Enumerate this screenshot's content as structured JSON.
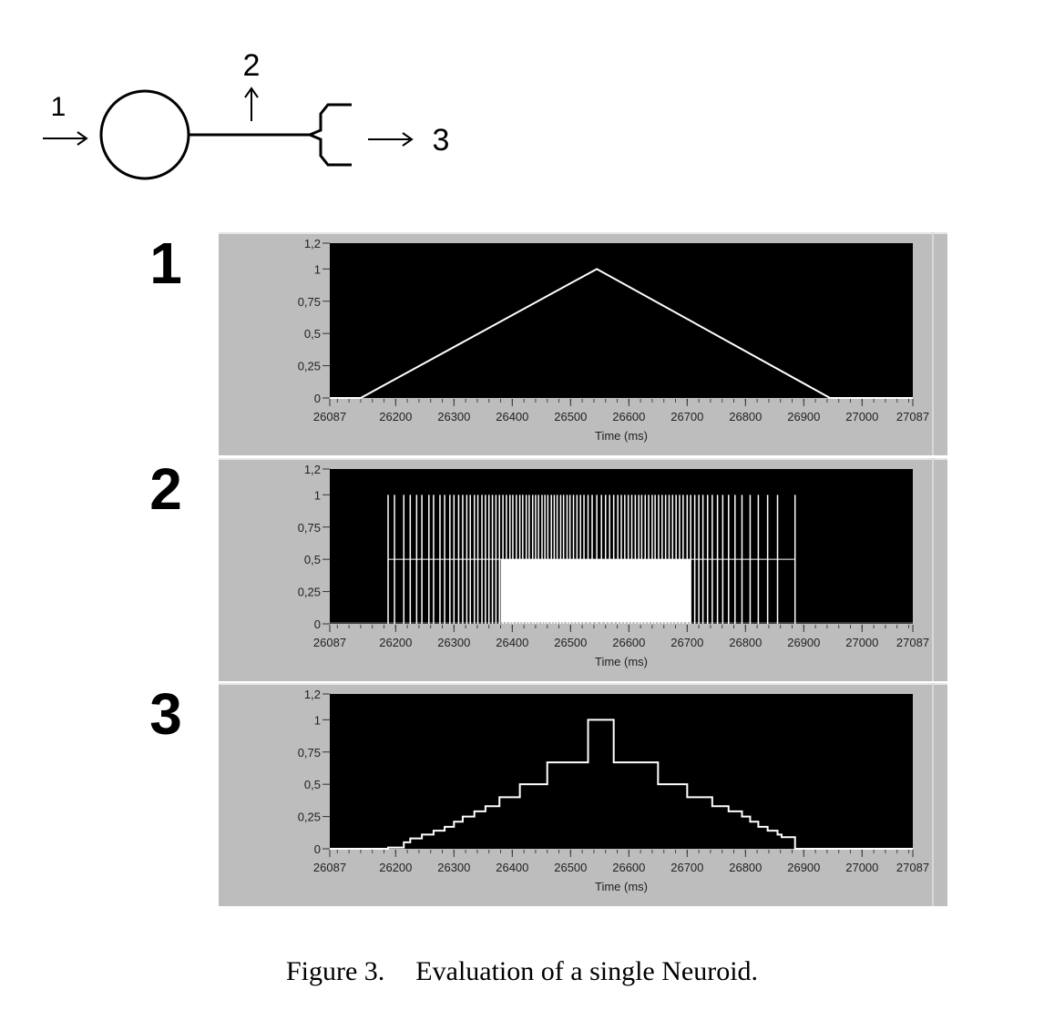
{
  "diagram": {
    "input_label": "1",
    "axon_label": "2",
    "output_label": "3"
  },
  "caption": {
    "figure_number": "Figure 3.",
    "text": "Evaluation of a single Neuroid."
  },
  "colors": {
    "plot_background": "#000000",
    "panel_background": "#bdbdbd",
    "trace": "#ffffff"
  },
  "chart_data": [
    {
      "type": "line",
      "panel_label": "1",
      "xlabel": "Time (ms)",
      "xlim": [
        26087,
        27087
      ],
      "ylim": [
        0,
        1.2
      ],
      "x_ticks": [
        26087,
        26200,
        26300,
        26400,
        26500,
        26600,
        26700,
        26800,
        26900,
        27000,
        27087
      ],
      "y_ticks": [
        0,
        0.25,
        0.5,
        0.75,
        1,
        1.2
      ],
      "y_tick_labels": [
        "0",
        "0,25",
        "0,5",
        "0,75",
        "1",
        "1,2"
      ],
      "series": [
        {
          "x": [
            26087,
            26140,
            26545,
            26945,
            27087
          ],
          "y": [
            0,
            0,
            1,
            0,
            0
          ]
        }
      ],
      "grid": false
    },
    {
      "type": "spikes",
      "panel_label": "2",
      "xlabel": "Time (ms)",
      "xlim": [
        26087,
        27087
      ],
      "ylim": [
        0,
        1.2
      ],
      "x_ticks": [
        26087,
        26200,
        26300,
        26400,
        26500,
        26600,
        26700,
        26800,
        26900,
        27000,
        27087
      ],
      "y_ticks": [
        0,
        0.25,
        0.5,
        0.75,
        1,
        1.2
      ],
      "y_tick_labels": [
        "0",
        "0,25",
        "0,5",
        "0,75",
        "1",
        "1,2"
      ],
      "spike_height": 1,
      "baseline_level": 0.5,
      "first_spike": 26187,
      "last_spike": 26885,
      "dense_interval": [
        26380,
        26705
      ],
      "spike_times": [
        26187,
        26198,
        26214,
        26225,
        26236,
        26245,
        26257,
        26265,
        26276,
        26284,
        26293,
        26300,
        26308,
        26315,
        26322,
        26328,
        26335,
        26341,
        26348,
        26354,
        26360,
        26366,
        26372,
        26378,
        26384,
        26390,
        26396,
        26401,
        26407,
        26413,
        26418,
        26424,
        26429,
        26435,
        26440,
        26445,
        26451,
        26456,
        26461,
        26467,
        26472,
        26477,
        26483,
        26488,
        26494,
        26499,
        26505,
        26511,
        26517,
        26523,
        26530,
        26537,
        26545,
        26553,
        26560,
        26567,
        26574,
        26581,
        26587,
        26593,
        26599,
        26605,
        26611,
        26617,
        26622,
        26628,
        26634,
        26640,
        26645,
        26651,
        26657,
        26663,
        26669,
        26675,
        26681,
        26687,
        26693,
        26700,
        26706,
        26713,
        26720,
        26727,
        26735,
        26743,
        26752,
        26761,
        26771,
        26782,
        26794,
        26808,
        26822,
        26838,
        26855,
        26885
      ],
      "grid": false
    },
    {
      "type": "step",
      "panel_label": "3",
      "xlabel": "Time (ms)",
      "xlim": [
        26087,
        27087
      ],
      "ylim": [
        0,
        1.2
      ],
      "x_ticks": [
        26087,
        26200,
        26300,
        26400,
        26500,
        26600,
        26700,
        26800,
        26900,
        27000,
        27087
      ],
      "y_ticks": [
        0,
        0.25,
        0.5,
        0.75,
        1,
        1.2
      ],
      "y_tick_labels": [
        "0",
        "0,25",
        "0,5",
        "0,75",
        "1",
        "1,2"
      ],
      "series": [
        {
          "x": [
            26087,
            26187,
            26214,
            26225,
            26245,
            26265,
            26284,
            26300,
            26315,
            26335,
            26354,
            26378,
            26413,
            26460,
            26530,
            26574,
            26650,
            26700,
            26743,
            26771,
            26794,
            26808,
            26822,
            26838,
            26855,
            26862,
            26885,
            27087
          ],
          "y": [
            0,
            0.01,
            0.05,
            0.08,
            0.11,
            0.14,
            0.17,
            0.21,
            0.25,
            0.29,
            0.33,
            0.4,
            0.5,
            0.67,
            1.0,
            0.67,
            0.5,
            0.4,
            0.33,
            0.29,
            0.25,
            0.21,
            0.17,
            0.14,
            0.11,
            0.09,
            0,
            0
          ]
        }
      ],
      "grid": false
    }
  ]
}
